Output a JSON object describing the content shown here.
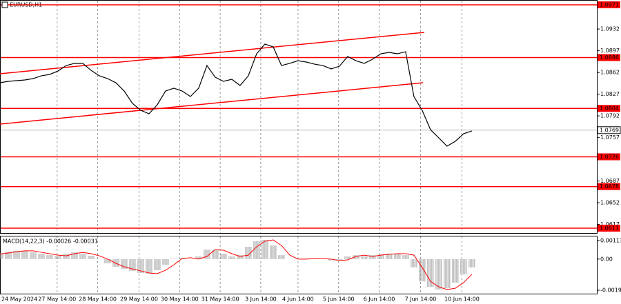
{
  "chart_data": [
    {
      "type": "line",
      "title": "EURUSD,H1",
      "x": [
        0,
        1,
        2,
        3,
        4,
        5,
        6,
        7,
        8,
        9,
        10,
        11,
        12,
        13,
        14,
        15,
        16,
        17,
        18,
        19,
        20,
        21,
        22,
        23,
        24,
        25,
        26,
        27,
        28,
        29,
        30,
        31,
        32,
        33,
        34,
        35,
        36,
        37,
        38,
        39,
        40,
        41,
        42,
        43,
        44,
        45,
        46,
        47,
        48,
        49,
        50,
        51,
        52,
        53,
        54,
        55,
        56,
        57
      ],
      "series": [
        {
          "color": "#000000",
          "values": [
            1.08454,
            1.08477,
            1.08488,
            1.08499,
            1.08521,
            1.08566,
            1.08588,
            1.08643,
            1.08732,
            1.08766,
            1.08766,
            1.08654,
            1.08566,
            1.08521,
            1.08454,
            1.08321,
            1.08121,
            1.0801,
            1.07954,
            1.08099,
            1.08321,
            1.08366,
            1.08321,
            1.08232,
            1.08366,
            1.08732,
            1.08543,
            1.08477,
            1.0851,
            1.0841,
            1.08566,
            1.08921,
            1.09077,
            1.09032,
            1.08732,
            1.08766,
            1.0881,
            1.08788,
            1.08754,
            1.08732,
            1.08677,
            1.08721,
            1.08877,
            1.0881,
            1.08766,
            1.08832,
            1.08921,
            1.08943,
            1.08921,
            1.08954,
            1.08232,
            1.0801,
            1.07699,
            1.07566,
            1.07432,
            1.0751,
            1.07632,
            1.07677
          ]
        }
      ],
      "xlim": [
        0,
        72.1
      ],
      "ylim": [
        1.06032,
        1.09788
      ],
      "yticks": [
        1.0932,
        1.0897,
        1.0862,
        1.0827,
        1.0792,
        1.0757,
        1.0687,
        1.0652,
        1.0617
      ],
      "xticks": [
        {
          "value": 0,
          "label": "24 May 2024"
        },
        {
          "value": 6.9,
          "label": "27 May 14:00"
        },
        {
          "value": 11.8,
          "label": "28 May 14:00"
        },
        {
          "value": 16.8,
          "label": "29 May 14:00"
        },
        {
          "value": 21.7,
          "label": "30 May 14:00"
        },
        {
          "value": 26.6,
          "label": "31 May 14:00"
        },
        {
          "value": 31.5,
          "label": "3 Jun 14:00"
        },
        {
          "value": 36,
          "label": "4 Jun 14:00"
        },
        {
          "value": 40.9,
          "label": "5 Jun 14:00"
        },
        {
          "value": 45.8,
          "label": "6 Jun 14:00"
        },
        {
          "value": 50.8,
          "label": "7 Jun 14:00"
        },
        {
          "value": 55.8,
          "label": "10 Jun 14:00"
        }
      ],
      "levels": [
        1.0971,
        1.0886,
        1.0804,
        1.0726,
        1.0678,
        1.0611
      ],
      "level_color": "#ff0000",
      "current_price": 1.0769,
      "trend_lines": [
        {
          "x": [
            0,
            51.25
          ],
          "y": [
            1.08599,
            1.09266
          ]
        },
        {
          "x": [
            0,
            51.1
          ],
          "y": [
            1.07788,
            1.08454
          ]
        }
      ]
    },
    {
      "type": "macd",
      "title": "MACD(14,22,3) -0.00026 -0.00031",
      "x": [
        0,
        1,
        2,
        3,
        4,
        5,
        6,
        7,
        8,
        9,
        10,
        11,
        12,
        13,
        14,
        15,
        16,
        17,
        18,
        19,
        20,
        21,
        22,
        23,
        24,
        25,
        26,
        27,
        28,
        29,
        30,
        31,
        32,
        33,
        34,
        35,
        36,
        37,
        38,
        39,
        40,
        41,
        42,
        43,
        44,
        45,
        46,
        47,
        48,
        49,
        50,
        51,
        52,
        53,
        54,
        55,
        56,
        57
      ],
      "histogram": {
        "color": "#a0a0a0",
        "values": [
          0.00037,
          0.00045,
          0.0005,
          0.0005,
          0.00041,
          0.00033,
          0.00024,
          0.0002,
          0.00033,
          0.00041,
          0.00033,
          0.0002,
          0,
          -0.00026,
          -0.00047,
          -0.0006,
          -0.00072,
          -0.00085,
          -0.00089,
          -0.00068,
          -0.00035,
          3e-05,
          8e-05,
          0,
          0.00016,
          0.00058,
          0.00054,
          0.00033,
          0.00016,
          0.00024,
          0.00075,
          0.00109,
          0.00117,
          0.00083,
          0.00024,
          0,
          0,
          3e-05,
          3e-05,
          0,
          -9e-05,
          -5e-05,
          0.00016,
          0.00024,
          0.00016,
          0.00024,
          0.00029,
          0.00033,
          0.00033,
          0.00024,
          -0.00051,
          -0.00136,
          -0.00169,
          -0.00186,
          -0.00178,
          -0.00144,
          -0.00093,
          -0.00051
        ]
      },
      "signal": {
        "color": "#ff0000",
        "values": [
          0.0003,
          0.00037,
          0.00045,
          0.0005,
          0.0005,
          0.00041,
          0.00033,
          0.00024,
          0.0002,
          0.00033,
          0.00041,
          0.00033,
          0.0002,
          0,
          -0.00026,
          -0.00047,
          -0.0006,
          -0.00072,
          -0.00085,
          -0.00089,
          -0.00068,
          -0.00035,
          3e-05,
          8e-05,
          0,
          0.00016,
          0.00058,
          0.00054,
          0.00033,
          0.00016,
          0.00024,
          0.00075,
          0.00109,
          0.00117,
          0.00083,
          0.00024,
          0,
          0,
          3e-05,
          3e-05,
          0,
          -9e-05,
          -5e-05,
          0.00016,
          0.00024,
          0.00016,
          0.00024,
          0.00029,
          0.00033,
          0.00033,
          0.00024,
          -0.00051,
          -0.00136,
          -0.00169,
          -0.00186,
          -0.00178,
          -0.00144,
          -0.00093
        ]
      },
      "xlim": [
        0,
        72.1
      ],
      "ylim": [
        -0.00211,
        0.00138
      ],
      "yticks": [
        0.00113,
        {
          "value": 0,
          "label": "0.00"
        },
        -0.0019
      ]
    }
  ]
}
